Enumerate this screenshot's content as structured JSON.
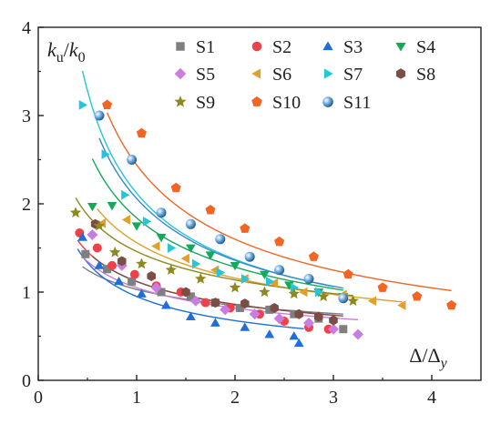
{
  "chart_data": {
    "type": "scatter",
    "ylabel": "k_u/k_0",
    "xlabel": "Δ/Δ_y",
    "xlim": [
      0,
      4.5
    ],
    "ylim": [
      0,
      4
    ],
    "xticks": [
      "0",
      "1",
      "2",
      "3",
      "4"
    ],
    "yticks": [
      "0",
      "1",
      "2",
      "3",
      "4"
    ],
    "grid": false,
    "legend_position": "top",
    "series": [
      {
        "name": "S1",
        "color": "#7f7f7f",
        "marker": "square",
        "points": [
          [
            0.48,
            1.43
          ],
          [
            0.7,
            1.26
          ],
          [
            0.95,
            1.12
          ],
          [
            1.25,
            1.0
          ],
          [
            1.55,
            0.95
          ],
          [
            1.8,
            0.88
          ],
          [
            2.05,
            0.82
          ],
          [
            2.35,
            0.8
          ],
          [
            2.6,
            0.75
          ],
          [
            2.85,
            0.7
          ],
          [
            3.1,
            0.58
          ]
        ],
        "fit": {
          "a": 1.03,
          "b": 0.28,
          "x_from": 0.45,
          "x_to": 3.1
        }
      },
      {
        "name": "S2",
        "color": "#f0404a",
        "marker": "circle",
        "points": [
          [
            0.42,
            1.67
          ],
          [
            0.6,
            1.5
          ],
          [
            0.75,
            1.3
          ],
          [
            0.98,
            1.2
          ],
          [
            1.2,
            1.07
          ],
          [
            1.45,
            1.0
          ],
          [
            1.7,
            0.88
          ],
          [
            1.95,
            0.82
          ],
          [
            2.25,
            0.75
          ],
          [
            2.5,
            0.67
          ],
          [
            2.75,
            0.6
          ],
          [
            2.95,
            0.58
          ]
        ],
        "fit": {
          "a": 1.12,
          "b": 0.38,
          "x_from": 0.4,
          "x_to": 3.0
        }
      },
      {
        "name": "S3",
        "color": "#1e6fd9",
        "marker": "triangle-up",
        "points": [
          [
            0.45,
            1.62
          ],
          [
            0.62,
            1.3
          ],
          [
            0.82,
            1.12
          ],
          [
            1.05,
            0.98
          ],
          [
            1.3,
            0.85
          ],
          [
            1.55,
            0.72
          ],
          [
            1.8,
            0.65
          ],
          [
            2.1,
            0.6
          ],
          [
            2.35,
            0.52
          ],
          [
            2.6,
            0.5
          ],
          [
            2.65,
            0.42
          ]
        ],
        "fit": {
          "a": 0.95,
          "b": 0.49,
          "x_from": 0.4,
          "x_to": 2.7
        }
      },
      {
        "name": "S4",
        "color": "#15a95a",
        "marker": "triangle-down",
        "points": [
          [
            0.55,
            1.97
          ],
          [
            0.75,
            1.98
          ],
          [
            1.0,
            1.75
          ],
          [
            1.25,
            1.62
          ],
          [
            1.55,
            1.5
          ],
          [
            1.75,
            1.42
          ],
          [
            2.0,
            1.3
          ],
          [
            2.3,
            1.2
          ],
          [
            2.55,
            1.08
          ],
          [
            2.85,
            1.0
          ],
          [
            3.1,
            0.95
          ]
        ],
        "fit": {
          "a": 1.84,
          "b": 0.52,
          "x_from": 0.55,
          "x_to": 3.1
        }
      },
      {
        "name": "S5",
        "color": "#c77ee0",
        "marker": "diamond",
        "points": [
          [
            0.55,
            1.65
          ],
          [
            0.85,
            1.3
          ],
          [
            1.2,
            1.05
          ],
          [
            1.6,
            0.9
          ],
          [
            1.9,
            0.8
          ],
          [
            2.2,
            0.75
          ],
          [
            2.45,
            0.7
          ],
          [
            2.75,
            0.65
          ],
          [
            3.0,
            0.58
          ],
          [
            3.25,
            0.52
          ]
        ],
        "fit": {
          "a": 1.05,
          "b": 0.36,
          "x_from": 0.45,
          "x_to": 3.25
        }
      },
      {
        "name": "S6",
        "color": "#e0a02a",
        "marker": "triangle-left",
        "points": [
          [
            0.65,
            1.78
          ],
          [
            0.9,
            1.82
          ],
          [
            1.2,
            1.52
          ],
          [
            1.5,
            1.38
          ],
          [
            1.8,
            1.25
          ],
          [
            2.1,
            1.15
          ],
          [
            2.4,
            1.1
          ],
          [
            2.7,
            1.0
          ],
          [
            3.1,
            0.97
          ],
          [
            3.4,
            0.9
          ],
          [
            3.7,
            0.85
          ]
        ],
        "fit": {
          "a": 1.56,
          "b": 0.43,
          "x_from": 0.6,
          "x_to": 3.7
        }
      },
      {
        "name": "S7",
        "color": "#25c6d9",
        "marker": "triangle-right",
        "points": [
          [
            0.45,
            3.12
          ],
          [
            0.68,
            2.56
          ],
          [
            0.88,
            2.1
          ],
          [
            1.1,
            1.8
          ],
          [
            1.35,
            1.5
          ],
          [
            1.6,
            1.32
          ],
          [
            1.85,
            1.22
          ],
          [
            2.1,
            1.15
          ],
          [
            2.35,
            1.12
          ],
          [
            2.6,
            1.05
          ],
          [
            2.85,
            1.0
          ]
        ],
        "fit": {
          "a": 2.12,
          "b": 0.63,
          "x_from": 0.45,
          "x_to": 3.0
        }
      },
      {
        "name": "S8",
        "color": "#7a4e45",
        "marker": "hexagon",
        "points": [
          [
            0.58,
            1.77
          ],
          [
            0.85,
            1.35
          ],
          [
            1.15,
            1.18
          ],
          [
            1.5,
            1.0
          ],
          [
            1.8,
            0.88
          ],
          [
            2.1,
            0.87
          ],
          [
            2.4,
            0.82
          ],
          [
            2.65,
            0.75
          ],
          [
            2.85,
            0.72
          ],
          [
            3.0,
            0.68
          ]
        ],
        "fit": {
          "a": 1.12,
          "b": 0.38,
          "x_from": 0.55,
          "x_to": 3.1
        }
      },
      {
        "name": "S9",
        "color": "#8c8a1f",
        "marker": "star",
        "points": [
          [
            0.38,
            1.9
          ],
          [
            0.62,
            1.75
          ],
          [
            0.78,
            1.45
          ],
          [
            1.05,
            1.32
          ],
          [
            1.35,
            1.25
          ],
          [
            1.65,
            1.15
          ],
          [
            2.0,
            1.05
          ],
          [
            2.3,
            1.0
          ],
          [
            2.6,
            0.98
          ],
          [
            2.9,
            0.95
          ],
          [
            3.2,
            0.9
          ]
        ],
        "fit": {
          "a": 1.46,
          "b": 0.36,
          "x_from": 0.38,
          "x_to": 3.2
        }
      },
      {
        "name": "S10",
        "color": "#f26522",
        "marker": "pentagon",
        "points": [
          [
            0.7,
            3.12
          ],
          [
            1.05,
            2.8
          ],
          [
            1.4,
            2.18
          ],
          [
            1.75,
            1.93
          ],
          [
            2.1,
            1.72
          ],
          [
            2.45,
            1.57
          ],
          [
            2.8,
            1.4
          ],
          [
            3.15,
            1.2
          ],
          [
            3.5,
            1.05
          ],
          [
            3.85,
            0.95
          ],
          [
            4.2,
            0.85
          ]
        ],
        "fit": {
          "a": 2.44,
          "b": 0.61,
          "x_from": 0.7,
          "x_to": 4.2
        }
      },
      {
        "name": "S11",
        "color": "#3a88c8",
        "marker": "sphere",
        "points": [
          [
            0.62,
            3.0
          ],
          [
            0.95,
            2.5
          ],
          [
            1.25,
            1.9
          ],
          [
            1.55,
            1.77
          ],
          [
            1.85,
            1.6
          ],
          [
            2.15,
            1.4
          ],
          [
            2.45,
            1.25
          ],
          [
            2.75,
            1.15
          ],
          [
            3.1,
            0.93
          ]
        ],
        "fit": {
          "a": 2.06,
          "b": 0.6,
          "x_from": 0.62,
          "x_to": 3.1
        }
      }
    ]
  }
}
